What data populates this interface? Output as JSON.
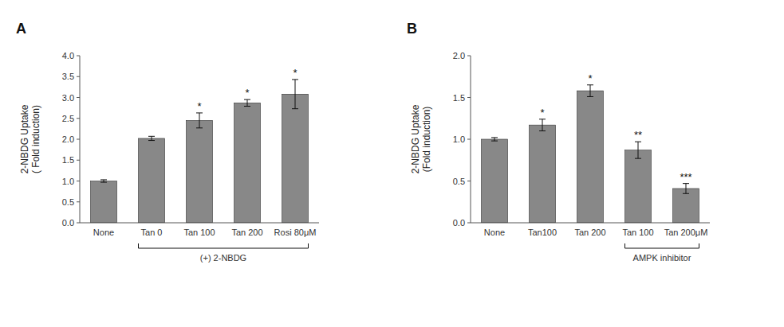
{
  "chart_data": [
    {
      "type": "bar",
      "title": "A",
      "ylabel": "2-NBDG Uptake\n( Fold induction)",
      "categories": [
        "None",
        "Tan 0",
        "Tan 100",
        "Tan 200",
        "Rosi 80μM"
      ],
      "values": [
        1.0,
        2.02,
        2.45,
        2.87,
        3.08
      ],
      "errors": [
        0.03,
        0.05,
        0.18,
        0.08,
        0.35
      ],
      "color": "#888888",
      "ylim": [
        0,
        4.0
      ],
      "yticks": [
        {
          "value": 0,
          "label": "0.0"
        },
        0.5,
        {
          "value": 1,
          "label": "1.0"
        },
        1.5,
        {
          "value": 2,
          "label": "2.0"
        },
        2.5,
        {
          "value": 3,
          "label": "3.0"
        },
        3.5,
        {
          "value": 4,
          "label": "4.0"
        }
      ],
      "grid": false,
      "annotations": [
        {
          "text": "*",
          "category": "Tan 100"
        },
        {
          "text": "*",
          "category": "Tan 200"
        },
        {
          "text": "*",
          "category": "Rosi 80μM"
        },
        {
          "text": "(+) 2-NBDG",
          "categories": [
            "Tan 0",
            "Tan 100",
            "Tan 200",
            "Rosi 80μM"
          ]
        }
      ]
    },
    {
      "type": "bar",
      "title": "B",
      "ylabel": "2-NBDG Uptake\n(Fold induction)",
      "categories": [
        "None",
        "Tan100",
        "Tan 200",
        "Tan 100",
        "Tan 200μM"
      ],
      "values": [
        1.0,
        1.17,
        1.58,
        0.87,
        0.41
      ],
      "errors": [
        0.02,
        0.07,
        0.07,
        0.1,
        0.06
      ],
      "color": "#888888",
      "ylim": [
        0,
        2.0
      ],
      "yticks": [
        {
          "value": 0,
          "label": "0.0"
        },
        0.5,
        {
          "value": 1,
          "label": "1.0"
        },
        1.5,
        {
          "value": 2,
          "label": "2.0"
        }
      ],
      "grid": false,
      "annotations": [
        {
          "text": "*",
          "category": "Tan100"
        },
        {
          "text": "*",
          "category": "Tan 200"
        },
        {
          "text": "**",
          "category": "Tan 100"
        },
        {
          "text": "***",
          "category": "Tan 200μM"
        },
        {
          "text": "AMPK inhibitor",
          "categories": [
            "Tan 100",
            "Tan 200μM"
          ]
        }
      ]
    }
  ]
}
